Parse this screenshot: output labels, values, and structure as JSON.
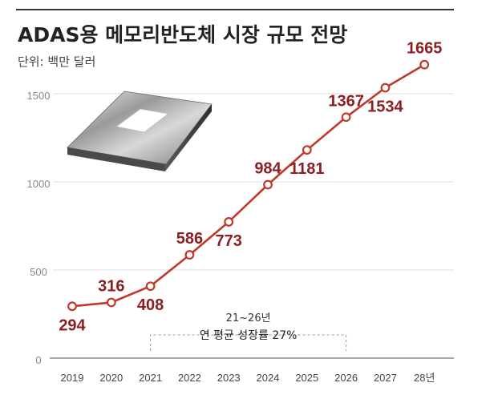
{
  "chart_data": {
    "type": "line",
    "title": "ADAS용 메모리반도체 시장 규모 전망",
    "subtitle": "단위: 백만 달러",
    "categories": [
      "2019",
      "2020",
      "2021",
      "2022",
      "2023",
      "2024",
      "2025",
      "2026",
      "2027",
      "28년"
    ],
    "values": [
      294,
      316,
      408,
      586,
      773,
      984,
      1181,
      1367,
      1534,
      1665
    ],
    "data_labels": [
      "294",
      "316",
      "408",
      "586",
      "773",
      "984",
      "1181",
      "1367",
      "1534",
      "1665"
    ],
    "yticks": [
      "0",
      "500",
      "1000",
      "1500"
    ],
    "ylim": [
      0,
      1700
    ],
    "grid": true,
    "line_color": "#c0392b",
    "label_color": "#8b1f22",
    "annotation": {
      "line1": "21~26년",
      "line2": "연 평균 성장률 27%"
    }
  }
}
